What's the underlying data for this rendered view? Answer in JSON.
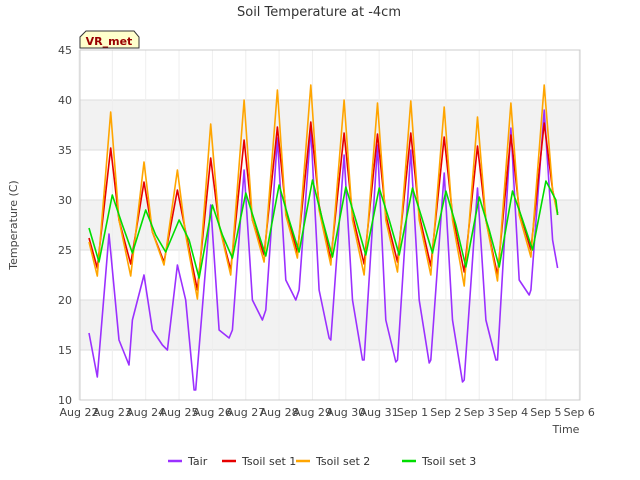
{
  "chart_data": {
    "type": "line",
    "title": "Soil Temperature at -4cm",
    "xlabel": "Time",
    "ylabel": "Temperature (C)",
    "badge": "VR_met",
    "ylim": [
      10,
      45
    ],
    "yticks": [
      10,
      15,
      20,
      25,
      30,
      35,
      40,
      45
    ],
    "xlim": [
      0,
      15
    ],
    "xticks": [
      {
        "x": 0,
        "label": "Aug 22"
      },
      {
        "x": 1,
        "label": "Aug 23"
      },
      {
        "x": 2,
        "label": "Aug 24"
      },
      {
        "x": 3,
        "label": "Aug 25"
      },
      {
        "x": 4,
        "label": "Aug 26"
      },
      {
        "x": 5,
        "label": "Aug 27"
      },
      {
        "x": 6,
        "label": "Aug 28"
      },
      {
        "x": 7,
        "label": "Aug 29"
      },
      {
        "x": 8,
        "label": "Aug 30"
      },
      {
        "x": 9,
        "label": "Aug 31"
      },
      {
        "x": 10,
        "label": "Sep 1"
      },
      {
        "x": 11,
        "label": "Sep 2"
      },
      {
        "x": 12,
        "label": "Sep 3"
      },
      {
        "x": 13,
        "label": "Sep 4"
      },
      {
        "x": 14,
        "label": "Sep 5"
      },
      {
        "x": 15,
        "label": "Sep 6"
      }
    ],
    "grid": true,
    "legend_position": "bottom",
    "series": [
      {
        "name": "Tair",
        "color": "#9b30ff",
        "x": [
          0.3,
          0.55,
          0.9,
          1.2,
          1.5,
          1.6,
          1.95,
          2.2,
          2.5,
          2.65,
          2.95,
          3.2,
          3.45,
          3.5,
          3.95,
          4.2,
          4.5,
          4.6,
          4.95,
          5.2,
          5.5,
          5.6,
          5.95,
          6.2,
          6.5,
          6.6,
          6.95,
          7.2,
          7.5,
          7.55,
          7.95,
          8.2,
          8.5,
          8.55,
          8.95,
          9.2,
          9.5,
          9.55,
          9.95,
          10.2,
          10.5,
          10.55,
          10.95,
          11.2,
          11.5,
          11.55,
          11.95,
          12.2,
          12.5,
          12.55,
          12.95,
          13.2,
          13.5,
          13.55,
          13.95,
          14.2,
          14.35
        ],
        "y": [
          16.7,
          12.3,
          26.6,
          16.0,
          13.5,
          18.0,
          22.5,
          17.0,
          15.5,
          15.0,
          23.5,
          20.0,
          11.0,
          11.0,
          29.5,
          17.0,
          16.2,
          17.0,
          33.0,
          20.0,
          18.0,
          19.0,
          36.2,
          22.0,
          20.0,
          21.0,
          37.2,
          21.0,
          16.2,
          16.0,
          34.5,
          20.0,
          14.0,
          14.0,
          35.5,
          18.0,
          13.8,
          14.0,
          35.0,
          20.0,
          13.7,
          14.0,
          32.7,
          18.0,
          11.8,
          12.0,
          31.2,
          18.0,
          14.0,
          14.0,
          37.2,
          22.0,
          20.5,
          21.0,
          39.0,
          26.0,
          23.2
        ]
      },
      {
        "name": "Tsoil set 1",
        "color": "#e60000",
        "x": [
          0.3,
          0.55,
          0.95,
          1.2,
          1.55,
          1.95,
          2.2,
          2.55,
          2.95,
          3.2,
          3.55,
          3.95,
          4.2,
          4.55,
          4.95,
          5.2,
          5.55,
          5.95,
          6.2,
          6.55,
          6.95,
          7.2,
          7.55,
          7.95,
          8.2,
          8.55,
          8.95,
          9.2,
          9.55,
          9.95,
          10.2,
          10.55,
          10.95,
          11.2,
          11.55,
          11.95,
          12.2,
          12.55,
          12.95,
          13.2,
          13.55,
          13.95,
          14.2,
          14.35
        ],
        "y": [
          26.2,
          23.2,
          35.2,
          28.0,
          23.6,
          31.8,
          26.8,
          23.8,
          31.0,
          26.8,
          21.0,
          34.2,
          27.5,
          23.0,
          36.0,
          28.0,
          24.5,
          37.3,
          29.0,
          24.7,
          37.8,
          29.5,
          24.0,
          36.7,
          28.5,
          23.6,
          36.6,
          28.5,
          23.8,
          36.7,
          28.5,
          23.4,
          36.3,
          28.5,
          22.8,
          35.4,
          28.0,
          22.5,
          36.5,
          29.0,
          25.0,
          37.7,
          31.0,
          28.7
        ]
      },
      {
        "name": "Tsoil set 2",
        "color": "#ffa500",
        "x": [
          0.3,
          0.55,
          0.95,
          1.2,
          1.55,
          1.95,
          2.2,
          2.55,
          2.95,
          3.2,
          3.55,
          3.95,
          4.2,
          4.55,
          4.95,
          5.2,
          5.55,
          5.95,
          6.2,
          6.55,
          6.95,
          7.2,
          7.55,
          7.95,
          8.2,
          8.55,
          8.95,
          9.2,
          9.55,
          9.95,
          10.2,
          10.55,
          10.95,
          11.2,
          11.55,
          11.95,
          12.2,
          12.55,
          12.95,
          13.2,
          13.55,
          13.95,
          14.2,
          14.35
        ],
        "y": [
          25.8,
          22.4,
          38.8,
          28.0,
          22.4,
          33.8,
          26.8,
          23.5,
          33.0,
          26.5,
          20.1,
          37.6,
          27.5,
          22.5,
          40.0,
          28.0,
          23.8,
          41.0,
          28.5,
          24.2,
          41.5,
          29.0,
          23.5,
          40.0,
          28.0,
          22.5,
          39.7,
          28.0,
          22.8,
          39.9,
          28.0,
          22.5,
          39.3,
          28.0,
          21.4,
          38.3,
          28.0,
          21.9,
          39.7,
          28.5,
          24.3,
          41.5,
          31.0,
          28.5
        ]
      },
      {
        "name": "Tsoil set 3",
        "color": "#00dd00",
        "x": [
          0.3,
          0.6,
          1.0,
          1.3,
          1.6,
          2.0,
          2.3,
          2.6,
          3.0,
          3.3,
          3.6,
          4.0,
          4.3,
          4.6,
          5.0,
          5.3,
          5.6,
          6.0,
          6.3,
          6.6,
          7.0,
          7.3,
          7.6,
          8.0,
          8.3,
          8.6,
          9.0,
          9.3,
          9.6,
          10.0,
          10.3,
          10.6,
          11.0,
          11.3,
          11.6,
          12.0,
          12.3,
          12.6,
          13.0,
          13.3,
          13.6,
          14.0,
          14.3,
          14.35
        ],
        "y": [
          27.2,
          23.8,
          30.5,
          27.5,
          24.7,
          29.0,
          26.5,
          24.8,
          28.0,
          26.0,
          22.2,
          29.5,
          26.5,
          24.2,
          30.7,
          27.5,
          24.4,
          31.5,
          28.0,
          24.8,
          32.0,
          28.0,
          24.3,
          31.3,
          28.0,
          24.5,
          31.2,
          28.0,
          24.5,
          31.2,
          28.0,
          24.7,
          30.9,
          27.5,
          23.3,
          30.3,
          27.0,
          23.3,
          30.9,
          28.0,
          25.0,
          31.9,
          30.0,
          28.5
        ]
      }
    ]
  }
}
